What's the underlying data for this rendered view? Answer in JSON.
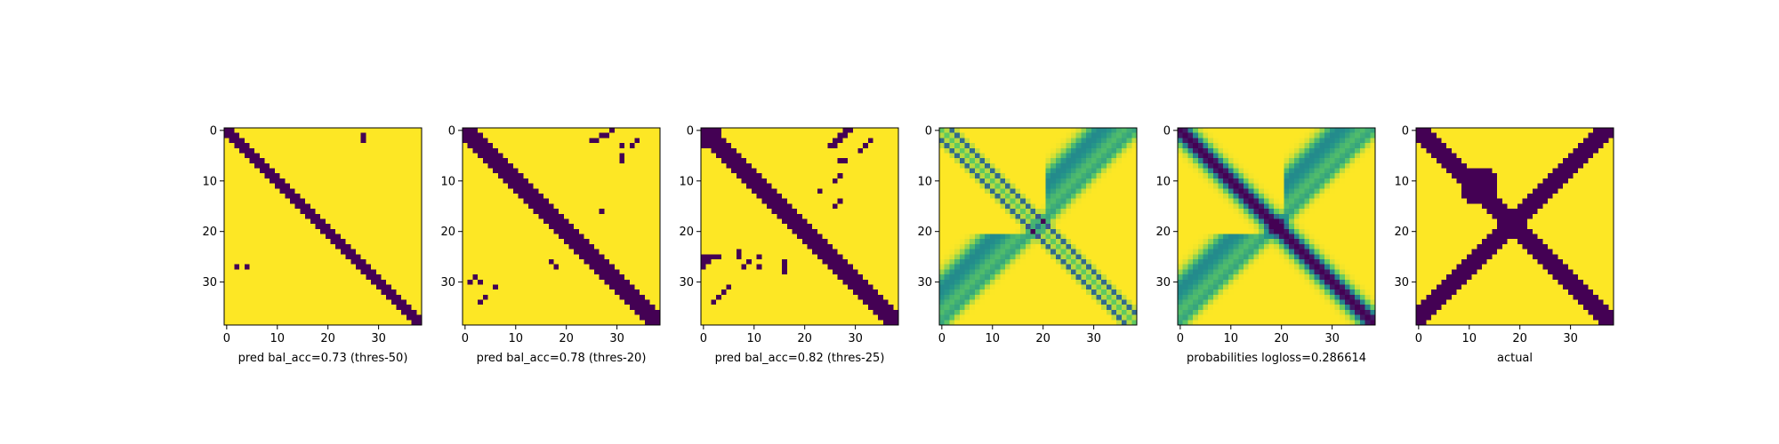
{
  "chart_data": [
    {
      "type": "heatmap",
      "title": "",
      "xlabel": "pred bal_acc=0.73 (thres-50)",
      "ylabel": "",
      "size": 39,
      "xticks": [
        0,
        10,
        20,
        30
      ],
      "yticks": [
        0,
        10,
        20,
        30
      ],
      "colormap": "viridis",
      "values": "binary mask: dark band along the main diagonal about 3-4 cells wide, plus isolated dark cells at (row 1-2, col 27) and (row 27, col 2-4); all other cells bright",
      "band_half_width": 1.6,
      "extra_dark_cells": [
        [
          1,
          27
        ],
        [
          2,
          27
        ],
        [
          27,
          2
        ],
        [
          27,
          4
        ]
      ],
      "vmin": 0,
      "vmax": 1
    },
    {
      "type": "heatmap",
      "title": "",
      "xlabel": "pred bal_acc=0.78 (thres-20)",
      "ylabel": "",
      "size": 39,
      "xticks": [
        0,
        10,
        20,
        30
      ],
      "yticks": [
        0,
        10,
        20,
        30
      ],
      "colormap": "viridis",
      "band_half_width": 2.0,
      "extra_dark_cells": [
        [
          0,
          29
        ],
        [
          1,
          28
        ],
        [
          1,
          27
        ],
        [
          2,
          26
        ],
        [
          2,
          25
        ],
        [
          2,
          34
        ],
        [
          3,
          33
        ],
        [
          3,
          31
        ],
        [
          5,
          31
        ],
        [
          6,
          31
        ],
        [
          16,
          27
        ],
        [
          26,
          17
        ],
        [
          27,
          18
        ],
        [
          29,
          2
        ],
        [
          30,
          1
        ],
        [
          30,
          3
        ],
        [
          31,
          6
        ],
        [
          33,
          4
        ],
        [
          34,
          3
        ]
      ],
      "vmin": 0,
      "vmax": 1
    },
    {
      "type": "heatmap",
      "title": "",
      "xlabel": "pred bal_acc=0.82 (thres-25)",
      "ylabel": "",
      "size": 39,
      "xticks": [
        0,
        10,
        20,
        30
      ],
      "yticks": [
        0,
        10,
        20,
        30
      ],
      "colormap": "viridis",
      "band_half_width": 2.4,
      "top_left_block": 4,
      "extra_dark_cells": [
        [
          0,
          28
        ],
        [
          0,
          29
        ],
        [
          1,
          27
        ],
        [
          1,
          28
        ],
        [
          2,
          26
        ],
        [
          2,
          27
        ],
        [
          3,
          25
        ],
        [
          3,
          26
        ],
        [
          2,
          33
        ],
        [
          3,
          32
        ],
        [
          4,
          31
        ],
        [
          6,
          28
        ],
        [
          6,
          27
        ],
        [
          9,
          27
        ],
        [
          10,
          26
        ],
        [
          12,
          23
        ],
        [
          14,
          27
        ],
        [
          15,
          26
        ],
        [
          25,
          0
        ],
        [
          25,
          1
        ],
        [
          25,
          2
        ],
        [
          25,
          3
        ],
        [
          26,
          0
        ],
        [
          26,
          1
        ],
        [
          27,
          0
        ],
        [
          24,
          7
        ],
        [
          25,
          7
        ],
        [
          26,
          9
        ],
        [
          27,
          8
        ],
        [
          25,
          11
        ],
        [
          27,
          11
        ],
        [
          26,
          16
        ],
        [
          27,
          16
        ],
        [
          28,
          16
        ],
        [
          31,
          5
        ],
        [
          32,
          4
        ],
        [
          33,
          3
        ],
        [
          34,
          2
        ]
      ],
      "vmin": 0,
      "vmax": 1
    },
    {
      "type": "heatmap",
      "title": "",
      "xlabel": "",
      "ylabel": "",
      "size": 39,
      "xticks": [
        0,
        10,
        20,
        30
      ],
      "yticks": [
        0,
        10,
        20,
        30
      ],
      "colormap": "viridis",
      "pattern": "continuous probabilities: two thin blue diagonal lines offset from main diagonal, anti-diagonal green arcs in upper-right and lower-left",
      "vmin": 0,
      "vmax": 1
    },
    {
      "type": "heatmap",
      "title": "",
      "xlabel": "probabilities logloss=0.286614",
      "ylabel": "",
      "size": 39,
      "xticks": [
        0,
        10,
        20,
        30
      ],
      "yticks": [
        0,
        10,
        20,
        30
      ],
      "colormap": "viridis",
      "pattern": "continuous probabilities: wide dark main diagonal band, anti-diagonal green arcs in upper-right and lower-left",
      "vmin": 0,
      "vmax": 1
    },
    {
      "type": "heatmap",
      "title": "",
      "xlabel": "actual",
      "ylabel": "",
      "size": 39,
      "xticks": [
        0,
        10,
        20,
        30
      ],
      "yticks": [
        0,
        10,
        20,
        30
      ],
      "colormap": "viridis",
      "pattern": "binary mask: X shape — main diagonal band and anti-diagonal band, with a blob near (11,12)",
      "vmin": 0,
      "vmax": 1
    }
  ]
}
